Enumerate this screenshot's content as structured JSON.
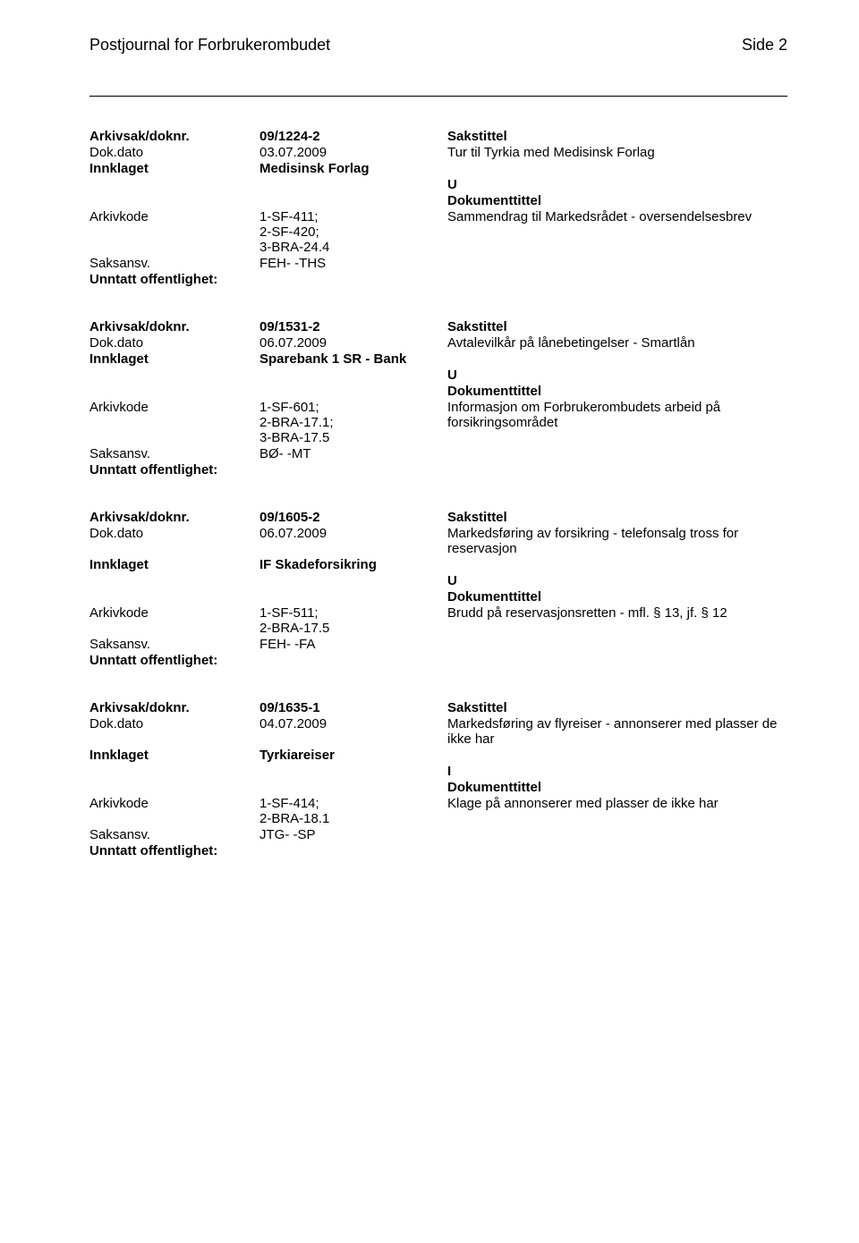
{
  "header": {
    "title": "Postjournal for Forbrukerombudet",
    "page_label": "Side 2"
  },
  "labels": {
    "arkivsak": "Arkivsak/doknr.",
    "dokdato": "Dok.dato",
    "innklaget": "Innklaget",
    "arkivkode": "Arkivkode",
    "saksansv": "Saksansv.",
    "unntatt": "Unntatt offentlighet:",
    "sakstittel": "Sakstittel",
    "dokumenttittel": "Dokumenttittel"
  },
  "entries": [
    {
      "arkivsak": "09/1224-2",
      "dokdato": "03.07.2009",
      "sakstittel": "Tur til Tyrkia med Medisinsk Forlag",
      "innklaget": "Medisinsk Forlag",
      "io": "U",
      "arkivkode": "1-SF-411;\n2-SF-420;\n3-BRA-24.4",
      "doktittel": "Sammendrag til Markedsrådet - oversendelsesbrev",
      "saksansv": "FEH- -THS"
    },
    {
      "arkivsak": "09/1531-2",
      "dokdato": "06.07.2009",
      "sakstittel": "Avtalevilkår på lånebetingelser - Smartlån",
      "innklaget": "Sparebank 1 SR - Bank",
      "io": "U",
      "arkivkode": "1-SF-601;\n2-BRA-17.1;\n3-BRA-17.5",
      "doktittel": "Informasjon om Forbrukerombudets arbeid på forsikringsområdet",
      "saksansv": "BØ- -MT"
    },
    {
      "arkivsak": "09/1605-2",
      "dokdato": "06.07.2009",
      "sakstittel": "Markedsføring av forsikring - telefonsalg tross for reservasjon",
      "innklaget": "IF Skadeforsikring",
      "io": "U",
      "arkivkode": "1-SF-511;\n2-BRA-17.5",
      "doktittel": "Brudd på reservasjonsretten - mfl. § 13, jf. § 12",
      "saksansv": "FEH- -FA"
    },
    {
      "arkivsak": "09/1635-1",
      "dokdato": "04.07.2009",
      "sakstittel": "Markedsføring av flyreiser - annonserer med plasser de ikke har",
      "innklaget": "Tyrkiareiser",
      "io": "I",
      "arkivkode": "1-SF-414;\n2-BRA-18.1",
      "doktittel": "Klage på annonserer med plasser de ikke har",
      "saksansv": "JTG- -SP"
    }
  ]
}
